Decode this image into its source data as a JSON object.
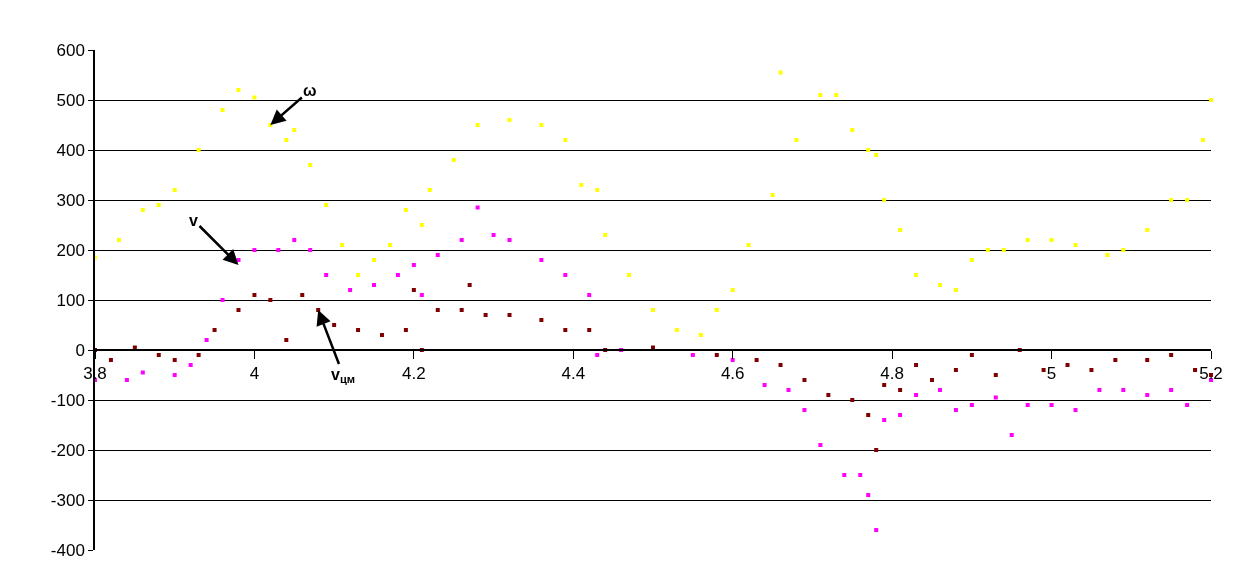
{
  "chart_data": {
    "type": "scatter",
    "marker": "square",
    "grid": "y",
    "xlim": [
      3.8,
      5.2
    ],
    "xticks": [
      {
        "value": 3.8,
        "label": "3.8"
      },
      {
        "value": 4.0,
        "label": "4"
      },
      {
        "value": 4.2,
        "label": "4.2"
      },
      {
        "value": 4.4,
        "label": "4.4"
      },
      {
        "value": 4.6,
        "label": "4.6"
      },
      {
        "value": 4.8,
        "label": "4.8"
      },
      {
        "value": 5.0,
        "label": "5"
      },
      {
        "value": 5.2,
        "label": "5.2"
      }
    ],
    "ylim": [
      -400,
      600
    ],
    "yticks": [
      -400,
      -300,
      -200,
      -100,
      0,
      100,
      200,
      300,
      400,
      500,
      600
    ],
    "series": [
      {
        "color": "#ffff00",
        "x": [
          3.8,
          3.83,
          3.86,
          3.88,
          3.9,
          3.93,
          3.96,
          3.98,
          4.0,
          4.02,
          4.04,
          4.05,
          4.07,
          4.09,
          4.11,
          4.13,
          4.15,
          4.17,
          4.19,
          4.21,
          4.22,
          4.25,
          4.28,
          4.32,
          4.36,
          4.39,
          4.41,
          4.43,
          4.44,
          4.47,
          4.5,
          4.53,
          4.56,
          4.58,
          4.6,
          4.62,
          4.65,
          4.66,
          4.68,
          4.71,
          4.73,
          4.75,
          4.77,
          4.78,
          4.79,
          4.81,
          4.83,
          4.86,
          4.88,
          4.9,
          4.92,
          4.94,
          4.97,
          5.0,
          5.03,
          5.07,
          5.09,
          5.12,
          5.15,
          5.17,
          5.19,
          5.2
        ],
        "values": [
          185,
          220,
          280,
          290,
          320,
          400,
          480,
          520,
          505,
          450,
          420,
          440,
          370,
          290,
          210,
          150,
          180,
          210,
          280,
          250,
          320,
          380,
          450,
          460,
          450,
          420,
          330,
          320,
          230,
          150,
          80,
          40,
          30,
          80,
          120,
          210,
          310,
          555,
          420,
          510,
          510,
          440,
          400,
          390,
          300,
          240,
          150,
          130,
          120,
          180,
          200,
          200,
          220,
          220,
          210,
          190,
          200,
          240,
          300,
          300,
          420,
          500
        ]
      },
      {
        "color": "#ff00ff",
        "x": [
          3.8,
          3.84,
          3.86,
          3.9,
          3.92,
          3.94,
          3.96,
          3.98,
          4.0,
          4.03,
          4.05,
          4.07,
          4.09,
          4.12,
          4.15,
          4.18,
          4.2,
          4.21,
          4.23,
          4.26,
          4.28,
          4.3,
          4.32,
          4.36,
          4.39,
          4.42,
          4.43,
          4.46,
          4.55,
          4.6,
          4.64,
          4.67,
          4.69,
          4.71,
          4.74,
          4.76,
          4.77,
          4.78,
          4.79,
          4.81,
          4.83,
          4.86,
          4.88,
          4.9,
          4.93,
          4.95,
          4.97,
          5.0,
          5.03,
          5.06,
          5.09,
          5.12,
          5.15,
          5.17,
          5.2
        ],
        "values": [
          -60,
          -60,
          -45,
          -50,
          -30,
          20,
          100,
          180,
          200,
          200,
          220,
          200,
          150,
          120,
          130,
          150,
          170,
          110,
          190,
          220,
          285,
          230,
          220,
          180,
          150,
          110,
          -10,
          0,
          -10,
          -20,
          -70,
          -80,
          -120,
          -190,
          -250,
          -250,
          -290,
          -360,
          -140,
          -130,
          -90,
          -80,
          -120,
          -110,
          -95,
          -170,
          -110,
          -110,
          -120,
          -80,
          -80,
          -90,
          -80,
          -110,
          -60
        ]
      },
      {
        "color": "#800000",
        "x": [
          3.8,
          3.82,
          3.85,
          3.88,
          3.9,
          3.93,
          3.95,
          3.98,
          4.0,
          4.02,
          4.04,
          4.06,
          4.08,
          4.1,
          4.13,
          4.16,
          4.19,
          4.2,
          4.21,
          4.23,
          4.26,
          4.27,
          4.29,
          4.32,
          4.36,
          4.39,
          4.42,
          4.44,
          4.5,
          4.58,
          4.63,
          4.66,
          4.69,
          4.72,
          4.75,
          4.77,
          4.78,
          4.79,
          4.81,
          4.83,
          4.85,
          4.88,
          4.9,
          4.93,
          4.96,
          4.99,
          5.02,
          5.05,
          5.08,
          5.12,
          5.15,
          5.18,
          5.2
        ],
        "values": [
          0,
          -20,
          5,
          -10,
          -20,
          -10,
          40,
          80,
          110,
          100,
          20,
          110,
          80,
          50,
          40,
          30,
          40,
          120,
          0,
          80,
          80,
          130,
          70,
          70,
          60,
          40,
          40,
          0,
          5,
          -10,
          -20,
          -30,
          -60,
          -90,
          -100,
          -130,
          -200,
          -70,
          -80,
          -30,
          -60,
          -40,
          -10,
          -50,
          0,
          -40,
          -30,
          -40,
          -20,
          -20,
          -10,
          -40,
          -50
        ]
      }
    ],
    "annotations": [
      {
        "text": "ω",
        "x": 4.02,
        "y": 450
      },
      {
        "text": "v",
        "x": 3.98,
        "y": 170
      },
      {
        "text": "v$_{цм}$",
        "x": 4.08,
        "y": 80
      }
    ]
  }
}
